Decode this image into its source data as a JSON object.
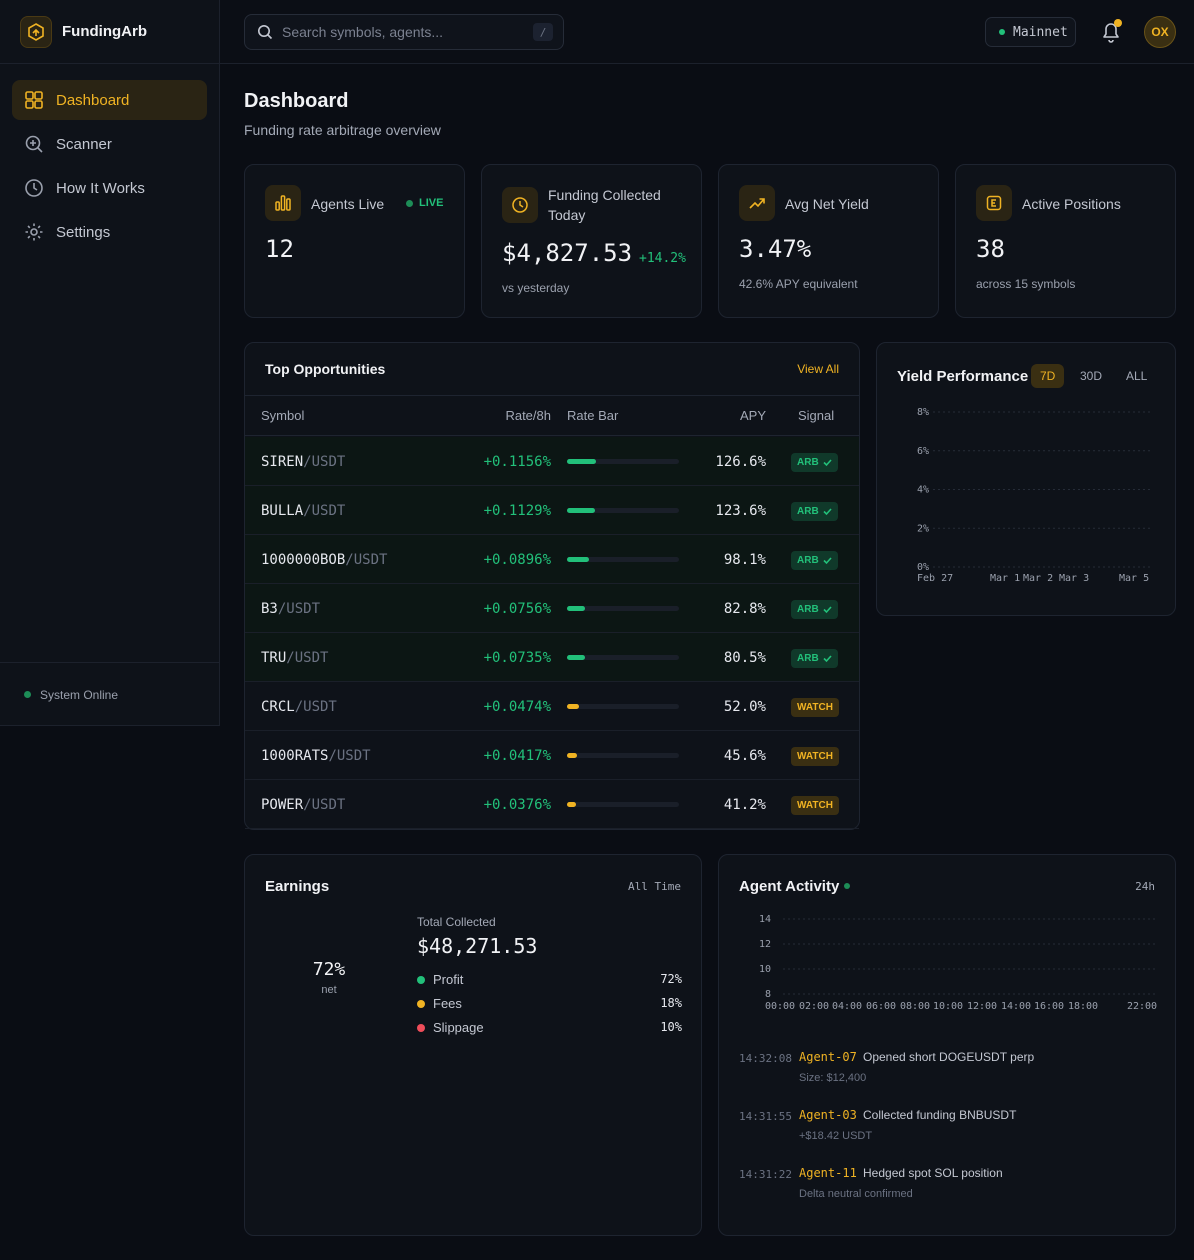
{
  "app": {
    "name": "FundingArb"
  },
  "sidebar": {
    "items": [
      {
        "label": "Dashboard",
        "icon": "grid-icon",
        "active": true
      },
      {
        "label": "Scanner",
        "icon": "scan-icon"
      },
      {
        "label": "How It Works",
        "icon": "clock-icon"
      },
      {
        "label": "Settings",
        "icon": "gear-icon"
      }
    ],
    "status": "System Online"
  },
  "header": {
    "search_placeholder": "Search symbols, agents...",
    "search_shortcut": "/",
    "network": "Mainnet",
    "avatar": "OX"
  },
  "page": {
    "title": "Dashboard",
    "subtitle": "Funding rate arbitrage overview"
  },
  "stats": {
    "agents": {
      "label": "Agents Live",
      "badge": "LIVE",
      "value": "12"
    },
    "funding": {
      "label": "Funding Collected Today",
      "value": "$4,827.53",
      "delta": "+14.2%",
      "sub": "vs yesterday"
    },
    "yield": {
      "label": "Avg Net Yield",
      "value": "3.47%",
      "sub": "42.6% APY equivalent"
    },
    "positions": {
      "label": "Active Positions",
      "value": "38",
      "sub": "across 15 symbols"
    }
  },
  "opportunities": {
    "title": "Top Opportunities",
    "view_all": "View All",
    "columns": {
      "symbol": "Symbol",
      "rate": "Rate/8h",
      "bar": "Rate Bar",
      "apy": "APY",
      "signal": "Signal"
    },
    "rows": [
      {
        "base": "SIREN",
        "quote": "/USDT",
        "rate": "+0.1156%",
        "bar": 0.26,
        "apy": "126.6%",
        "signal": "ARB"
      },
      {
        "base": "BULLA",
        "quote": "/USDT",
        "rate": "+0.1129%",
        "bar": 0.25,
        "apy": "123.6%",
        "signal": "ARB"
      },
      {
        "base": "1000000BOB",
        "quote": "/USDT",
        "rate": "+0.0896%",
        "bar": 0.2,
        "apy": "98.1%",
        "signal": "ARB"
      },
      {
        "base": "B3",
        "quote": "/USDT",
        "rate": "+0.0756%",
        "bar": 0.165,
        "apy": "82.8%",
        "signal": "ARB"
      },
      {
        "base": "TRU",
        "quote": "/USDT",
        "rate": "+0.0735%",
        "bar": 0.16,
        "apy": "80.5%",
        "signal": "ARB"
      },
      {
        "base": "CRCL",
        "quote": "/USDT",
        "rate": "+0.0474%",
        "bar": 0.105,
        "apy": "52.0%",
        "signal": "WATCH"
      },
      {
        "base": "1000RATS",
        "quote": "/USDT",
        "rate": "+0.0417%",
        "bar": 0.09,
        "apy": "45.6%",
        "signal": "WATCH"
      },
      {
        "base": "POWER",
        "quote": "/USDT",
        "rate": "+0.0376%",
        "bar": 0.08,
        "apy": "41.2%",
        "signal": "WATCH"
      }
    ]
  },
  "yield_chart": {
    "title": "Yield Performance",
    "ranges": [
      "7D",
      "30D",
      "ALL"
    ],
    "active_range": "7D",
    "y_ticks": [
      "8%",
      "6%",
      "4%",
      "2%",
      "0%"
    ],
    "x_ticks": [
      "Feb 27",
      "Mar 1",
      "Mar 2",
      "Mar 3",
      "Mar 5"
    ]
  },
  "earnings": {
    "title": "Earnings",
    "range": "All Time",
    "center_value": "72%",
    "center_label": "net",
    "total_label": "Total Collected",
    "total_value": "$48,271.53",
    "breakdown": [
      {
        "name": "Profit",
        "value": "72%",
        "color": "#22c07a"
      },
      {
        "name": "Fees",
        "value": "18%",
        "color": "#f0b323"
      },
      {
        "name": "Slippage",
        "value": "10%",
        "color": "#ef4d5a"
      }
    ]
  },
  "activity": {
    "title": "Agent Activity",
    "range": "24h",
    "y_ticks": [
      "14",
      "12",
      "10",
      "8"
    ],
    "x_ticks": [
      "00:00",
      "02:00",
      "04:00",
      "06:00",
      "08:00",
      "10:00",
      "12:00",
      "14:00",
      "16:00",
      "18:00",
      "22:00"
    ],
    "events": [
      {
        "time": "14:32:08",
        "agent": "Agent-07",
        "message": "Opened short DOGEUSDT perp",
        "detail": "Size: $12,400"
      },
      {
        "time": "14:31:55",
        "agent": "Agent-03",
        "message": "Collected funding BNBUSDT",
        "detail": "+$18.42 USDT"
      },
      {
        "time": "14:31:22",
        "agent": "Agent-11",
        "message": "Hedged spot SOL position",
        "detail": "Delta neutral confirmed"
      }
    ]
  },
  "colors": {
    "accent": "#f0b323",
    "positive": "#22c07a",
    "negative": "#ef4d5a"
  }
}
